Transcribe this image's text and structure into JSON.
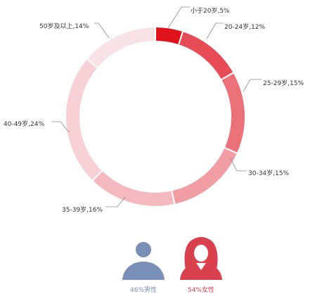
{
  "chart_data": {
    "type": "pie",
    "variant": "donut",
    "categories": [
      "小于20岁",
      "20-24岁",
      "25-29岁",
      "30-34岁",
      "35-39岁",
      "40-49岁",
      "50岁及以上"
    ],
    "values": [
      5,
      12,
      15,
      15,
      16,
      24,
      14
    ],
    "labels": [
      "小于20岁,5%",
      "20-24岁,12%",
      "25-29岁,15%",
      "30-34岁,15%",
      "35-39岁,16%",
      "40-49岁,24%",
      "50岁及以上,14%"
    ],
    "unit": "%",
    "colors": [
      "#e0121b",
      "#e64c55",
      "#ea7178",
      "#f09ea3",
      "#f4b9be",
      "#f7d1d5",
      "#f9e2e5"
    ],
    "start_angle_deg": 0,
    "direction": "clockwise"
  },
  "gender": {
    "male": {
      "label": "46%男性",
      "value": 46,
      "icon": "male-user-icon",
      "color": "#7a8fb8"
    },
    "female": {
      "label": "54%女性",
      "value": 54,
      "icon": "female-user-icon",
      "color": "#d9404d"
    }
  }
}
